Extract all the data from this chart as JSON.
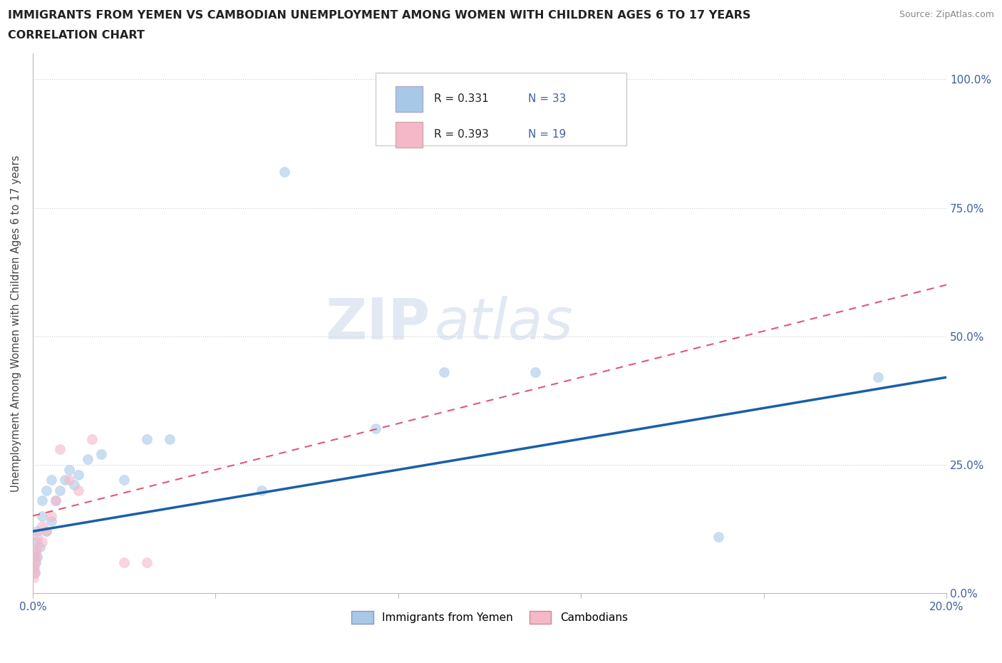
{
  "title_line1": "IMMIGRANTS FROM YEMEN VS CAMBODIAN UNEMPLOYMENT AMONG WOMEN WITH CHILDREN AGES 6 TO 17 YEARS",
  "title_line2": "CORRELATION CHART",
  "source_text": "Source: ZipAtlas.com",
  "ylabel": "Unemployment Among Women with Children Ages 6 to 17 years",
  "xlim": [
    0.0,
    0.2
  ],
  "ylim": [
    0.0,
    1.05
  ],
  "watermark": "ZIPatlas",
  "legend_r1": "R = 0.331",
  "legend_n1": "N = 33",
  "legend_r2": "R = 0.393",
  "legend_n2": "N = 19",
  "color_yemen": "#a8c8e8",
  "color_cambodian": "#f5b8c8",
  "color_yemen_line": "#1a5fa8",
  "color_cambodian_line": "#e05878",
  "scatter_alpha": 0.6,
  "marker_size": 100,
  "yemen_x": [
    0.0002,
    0.0003,
    0.0004,
    0.0005,
    0.0006,
    0.0008,
    0.001,
    0.001,
    0.0015,
    0.002,
    0.002,
    0.003,
    0.003,
    0.004,
    0.004,
    0.005,
    0.006,
    0.007,
    0.008,
    0.009,
    0.01,
    0.012,
    0.015,
    0.02,
    0.025,
    0.03,
    0.05,
    0.055,
    0.075,
    0.09,
    0.11,
    0.15,
    0.185
  ],
  "yemen_y": [
    0.05,
    0.07,
    0.04,
    0.08,
    0.06,
    0.1,
    0.07,
    0.12,
    0.09,
    0.15,
    0.18,
    0.12,
    0.2,
    0.14,
    0.22,
    0.18,
    0.2,
    0.22,
    0.24,
    0.21,
    0.23,
    0.26,
    0.27,
    0.22,
    0.3,
    0.3,
    0.2,
    0.82,
    0.32,
    0.43,
    0.43,
    0.11,
    0.42
  ],
  "cambodian_x": [
    0.0002,
    0.0003,
    0.0004,
    0.0005,
    0.0006,
    0.0008,
    0.001,
    0.001,
    0.002,
    0.002,
    0.003,
    0.004,
    0.005,
    0.006,
    0.008,
    0.01,
    0.013,
    0.02,
    0.025
  ],
  "cambodian_y": [
    0.03,
    0.05,
    0.04,
    0.06,
    0.08,
    0.07,
    0.09,
    0.11,
    0.1,
    0.13,
    0.12,
    0.15,
    0.18,
    0.28,
    0.22,
    0.2,
    0.3,
    0.06,
    0.06
  ],
  "ytick_right_labels": [
    "0.0%",
    "25.0%",
    "50.0%",
    "75.0%",
    "100.0%"
  ],
  "ytick_right_vals": [
    0.0,
    0.25,
    0.5,
    0.75,
    1.0
  ]
}
